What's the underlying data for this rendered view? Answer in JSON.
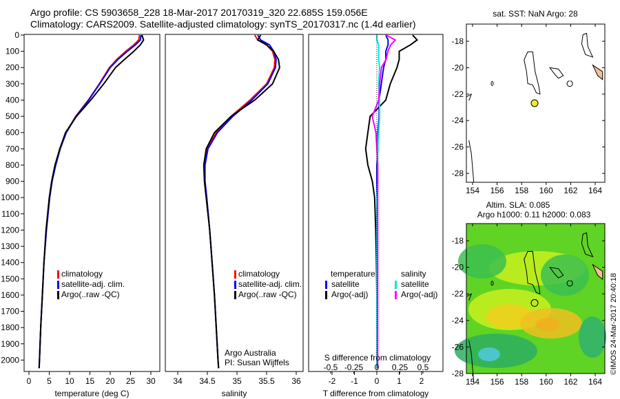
{
  "title": {
    "line1": "Argo profile: CS 5903658_228 18-Mar-2017 20170319_320 22.685S 159.056E",
    "line2": "Climatology: CARS2009. Satellite-adjusted climatology: synTS_20170317.nc (1.4d earlier)"
  },
  "colors": {
    "climatology": "#ff0000",
    "satellite": "#0000ff",
    "argo": "#000000",
    "sal_satellite": "#00e5e5",
    "sal_argo": "#ff00ff"
  },
  "chart_data": [
    {
      "type": "line",
      "id": "temperature",
      "xlabel": "temperature (deg C)",
      "xlim": [
        -1,
        31
      ],
      "ylim": [
        2050,
        0
      ],
      "xticks": [
        "0",
        "5",
        "10",
        "15",
        "20",
        "25",
        "30"
      ],
      "xtick_values": [
        0,
        5,
        10,
        15,
        20,
        25,
        30
      ],
      "yticks": [
        0,
        100,
        200,
        300,
        400,
        500,
        600,
        700,
        800,
        900,
        1000,
        1100,
        1200,
        1300,
        1400,
        1500,
        1600,
        1700,
        1800,
        1900,
        2000
      ],
      "depth": [
        0,
        30,
        60,
        100,
        150,
        200,
        300,
        400,
        500,
        600,
        700,
        800,
        900,
        1000,
        1200,
        1400,
        1600,
        1800,
        2000,
        2050
      ],
      "series": [
        {
          "name": "climatology",
          "values": [
            27.2,
            27,
            25.8,
            23.8,
            21.6,
            19.8,
            17.3,
            14.6,
            11.5,
            9.1,
            7.6,
            6.5,
            5.7,
            5.1,
            4.3,
            3.7,
            3.3,
            2.9,
            2.6,
            2.5
          ]
        },
        {
          "name": "satellite-adj. clim.",
          "values": [
            27.6,
            27.4,
            26.2,
            24.2,
            21.9,
            20,
            17.4,
            14.7,
            11.6,
            9.2,
            7.7,
            6.6,
            5.7,
            5.1,
            4.3,
            3.7,
            3.3,
            2.9,
            2.6,
            2.5
          ]
        },
        {
          "name": "Argo(..raw -QC)",
          "values": [
            27.8,
            28.2,
            27.4,
            25.8,
            23.5,
            21.3,
            18.4,
            15.2,
            11.7,
            9.0,
            7.6,
            6.4,
            5.6,
            5.0,
            4.2,
            3.7,
            3.3,
            2.9,
            2.6,
            2.5
          ]
        }
      ],
      "legend": [
        "climatology",
        "satellite-adj. clim.",
        "Argo(..raw -QC)"
      ]
    },
    {
      "type": "line",
      "id": "salinity",
      "xlabel": "salinity",
      "xlim": [
        33.8,
        36.2
      ],
      "ylim": [
        2050,
        0
      ],
      "xticks": [
        "34",
        "34.5",
        "35",
        "35.5",
        "36"
      ],
      "xtick_values": [
        34,
        34.5,
        35,
        35.5,
        36
      ],
      "depth": [
        0,
        30,
        60,
        100,
        150,
        200,
        300,
        400,
        500,
        600,
        700,
        800,
        900,
        1000,
        1200,
        1400,
        1600,
        1800,
        2000,
        2050
      ],
      "series": [
        {
          "name": "climatology",
          "values": [
            35.3,
            35.35,
            35.5,
            35.6,
            35.64,
            35.63,
            35.5,
            35.22,
            34.9,
            34.65,
            34.5,
            34.45,
            34.46,
            34.49,
            34.54,
            34.58,
            34.62,
            34.65,
            34.68,
            34.69
          ]
        },
        {
          "name": "satellite-adj. clim.",
          "values": [
            35.35,
            35.4,
            35.55,
            35.62,
            35.66,
            35.65,
            35.52,
            35.25,
            34.93,
            34.67,
            34.51,
            34.46,
            34.46,
            34.49,
            34.54,
            34.58,
            34.62,
            34.65,
            34.68,
            34.69
          ]
        },
        {
          "name": "Argo(..raw -QC)",
          "values": [
            35.4,
            35.35,
            35.5,
            35.62,
            35.7,
            35.72,
            35.6,
            35.3,
            34.9,
            34.62,
            34.48,
            34.44,
            34.45,
            34.48,
            34.54,
            34.58,
            34.62,
            34.65,
            34.68,
            34.69
          ]
        }
      ],
      "legend": [
        "climatology",
        "satellite-adj. clim.",
        "Argo(..raw -QC)"
      ],
      "annotation": [
        "Argo Australia",
        "PI: Susan Wijffels"
      ]
    },
    {
      "type": "line",
      "id": "differences",
      "xlabel": "T difference from climatology",
      "x2label": "S difference from climatology",
      "xlim": [
        -3,
        3
      ],
      "ylim": [
        2050,
        0
      ],
      "xticks": [
        "-2",
        "-1",
        "0",
        "1",
        "2"
      ],
      "xtick_values": [
        -2,
        -1,
        0,
        1,
        2
      ],
      "x2ticks": [
        "-0.5",
        "-0.25",
        "0",
        "0.25",
        "0.5"
      ],
      "x2tick_values": [
        -0.5,
        -0.25,
        0,
        0.25,
        0.5
      ],
      "depth": [
        0,
        30,
        60,
        100,
        150,
        200,
        300,
        400,
        500,
        600,
        700,
        800,
        900,
        1000,
        1200,
        1400,
        1600,
        1800,
        2000,
        2050
      ],
      "series": [
        {
          "name": "temperature satellite",
          "values": [
            0.4,
            0.5,
            0.5,
            0.4,
            0.4,
            0.3,
            0.2,
            0.1,
            0.1,
            0.05,
            0.05,
            0,
            0,
            0,
            0,
            0,
            0,
            0,
            0,
            0
          ]
        },
        {
          "name": "temperature Argo(-adj)",
          "values": [
            1.6,
            1.8,
            1.5,
            1.0,
            1.0,
            0.9,
            0.6,
            0.4,
            -0.3,
            -0.4,
            -0.5,
            -0.4,
            -0.2,
            -0.1,
            -0.05,
            -0.02,
            0,
            0,
            0,
            0
          ]
        },
        {
          "name": "salinity satellite",
          "values": [
            0,
            0,
            0.02,
            0.02,
            0.02,
            0.03,
            0.02,
            0.03,
            0.03,
            0.02,
            0.01,
            0.01,
            0.01,
            0,
            0,
            0,
            0,
            0,
            0,
            0
          ]
        },
        {
          "name": "salinity Argo(-adj)",
          "values": [
            0.1,
            0.2,
            0.15,
            0.12,
            0.1,
            0.05,
            0.03,
            0.02,
            -0.05,
            -0.01,
            0,
            0.01,
            0.01,
            0.01,
            0.01,
            0.01,
            0.01,
            0.01,
            0.01,
            0.01
          ]
        }
      ],
      "legend": {
        "temperature_title": "temperature",
        "salinity_title": "salinity",
        "sat": "satellite",
        "argo": "Argo(-adj)"
      }
    }
  ],
  "maps": {
    "sst": {
      "title": "sat. SST: NaN Argo: 28",
      "lon_ticks": [
        "154",
        "156",
        "158",
        "160",
        "162",
        "164"
      ],
      "lat_ticks": [
        "-18",
        "-20",
        "-22",
        "-24",
        "-26",
        "-28"
      ]
    },
    "sla": {
      "title1": "Altim. SLA: 0.085",
      "title2": "Argo h1000: 0.11 h2000: 0.083",
      "lon_ticks": [
        "154",
        "156",
        "158",
        "160",
        "162",
        "164"
      ],
      "lat_ticks": [
        "-18",
        "-20",
        "-22",
        "-24",
        "-26",
        "-28"
      ]
    },
    "float_lon": 159.056,
    "float_lat": -22.685,
    "credit": "©IMOS 24-Mar-2017 20:40:18"
  }
}
